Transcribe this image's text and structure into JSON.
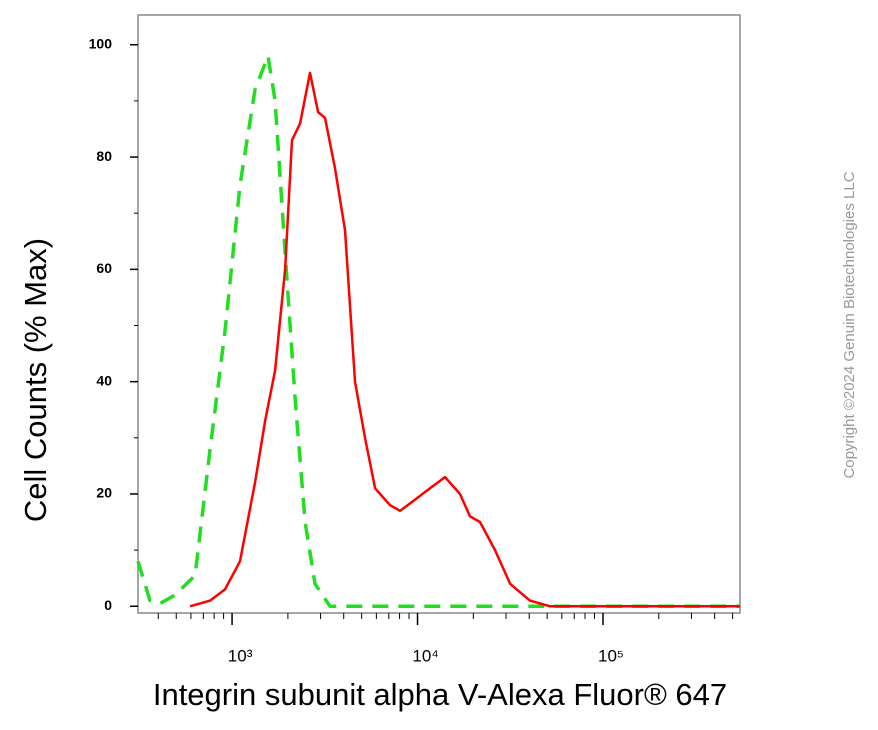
{
  "chart_data": {
    "type": "line",
    "x_label": "Integrin subunit alpha V-Alexa Fluor® 647",
    "y_label": "Cell Counts (% Max)",
    "annotation": "Copyright ©2024 Genuin Biotechnologies LLC",
    "x_scale": "log",
    "xlim": [
      311,
      548000
    ],
    "ylim": [
      -1.2,
      105.3
    ],
    "xticks": [
      {
        "value": 1000,
        "label": "10³"
      },
      {
        "value": 10000,
        "label": "10⁴"
      },
      {
        "value": 100000,
        "label": "10⁵"
      }
    ],
    "xminorticks": [
      400,
      500,
      600,
      700,
      800,
      900,
      2000,
      3000,
      4000,
      5000,
      6000,
      7000,
      8000,
      9000,
      20000,
      30000,
      40000,
      50000,
      60000,
      70000,
      80000,
      90000,
      200000,
      300000,
      400000,
      500000
    ],
    "yticks": [
      0,
      20,
      40,
      60,
      80,
      100
    ],
    "yminorticks": [
      10,
      30,
      50,
      70,
      90
    ],
    "grid": false,
    "series": [
      {
        "color": "#22dd22",
        "dash": true,
        "x": [
          311,
          361,
          409,
          493,
          632,
          761,
          916,
          1104,
          1330,
          1563,
          1706,
          1932,
          2188,
          2477,
          2799,
          3373,
          8054,
          27860,
          96380,
          548000
        ],
        "values": [
          8,
          1,
          0.5,
          2,
          5.5,
          28,
          49,
          75,
          92,
          98,
          90,
          63,
          37,
          15,
          4,
          0,
          0,
          0,
          0,
          0
        ]
      },
      {
        "color": "#ff0000",
        "dash": false,
        "x": [
          594,
          761,
          916,
          1104,
          1330,
          1507,
          1706,
          1932,
          2104,
          2328,
          2630,
          2911,
          3170,
          3589,
          4064,
          4603,
          5212,
          5902,
          7112,
          8054,
          9705,
          11670,
          14060,
          16940,
          19190,
          21730,
          26180,
          31550,
          40360,
          51760,
          96380,
          548000
        ],
        "values": [
          0,
          1,
          3,
          8,
          22,
          33,
          42,
          60,
          83,
          86,
          95,
          88,
          87,
          78,
          67,
          40,
          30,
          21,
          18,
          17,
          19,
          21,
          23,
          20,
          16,
          15,
          10,
          4,
          1,
          0,
          0,
          0
        ]
      }
    ]
  }
}
